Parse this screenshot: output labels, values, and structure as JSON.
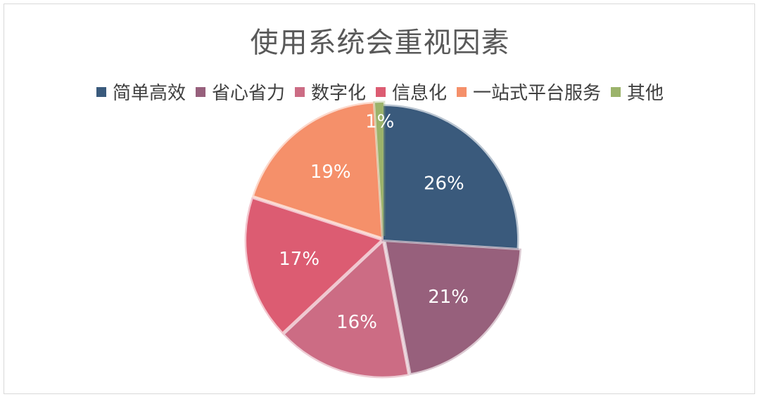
{
  "chart_data": {
    "type": "pie",
    "title": "使用系统会重视因素",
    "legend_position": "top",
    "slices": [
      {
        "name": "简单高效",
        "value": 26,
        "label": "26%",
        "color": "#3a5a7c"
      },
      {
        "name": "省心省力",
        "value": 21,
        "label": "21%",
        "color": "#97607c"
      },
      {
        "name": "数字化",
        "value": 16,
        "label": "16%",
        "color": "#cc6c84"
      },
      {
        "name": "信息化",
        "value": 17,
        "label": "17%",
        "color": "#dc5c72"
      },
      {
        "name": "一站式平台服务",
        "value": 19,
        "label": "19%",
        "color": "#f5906a"
      },
      {
        "name": "其他",
        "value": 1,
        "label": "1%",
        "color": "#9bb36b"
      }
    ]
  }
}
